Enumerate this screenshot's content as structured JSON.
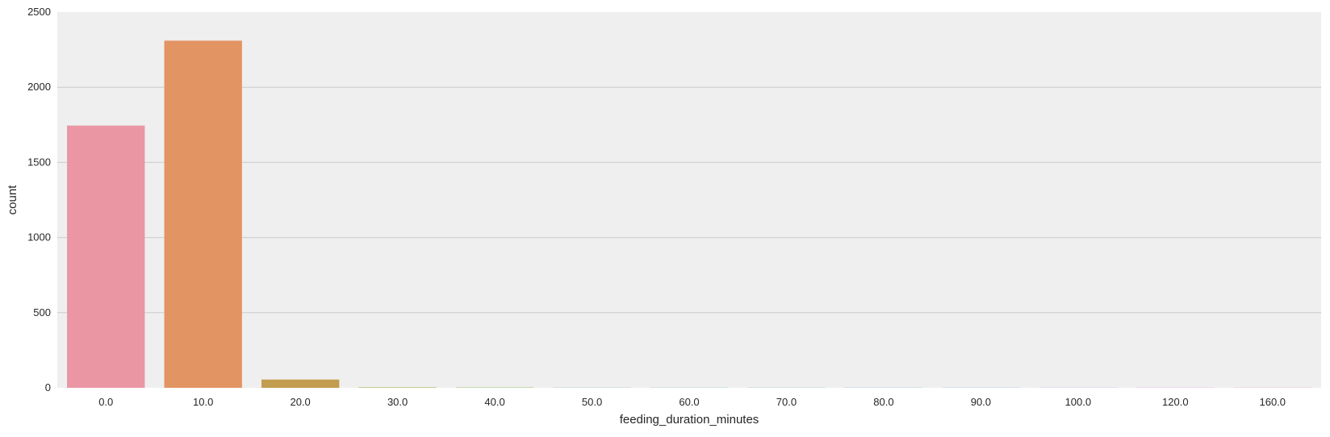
{
  "chart_data": {
    "type": "bar",
    "title": "",
    "xlabel": "feeding_duration_minutes",
    "ylabel": "count",
    "categories": [
      "0.0",
      "10.0",
      "20.0",
      "30.0",
      "40.0",
      "50.0",
      "60.0",
      "70.0",
      "80.0",
      "90.0",
      "100.0",
      "120.0",
      "160.0"
    ],
    "values": [
      1745,
      2310,
      55,
      3,
      2,
      1,
      1,
      1,
      1,
      1,
      1,
      1,
      1
    ],
    "ylim": [
      0,
      2500
    ],
    "yticks": [
      "0",
      "500",
      "1000",
      "1500",
      "2000",
      "2500"
    ],
    "grid": "horizontal",
    "background_color": "#EFEFEF",
    "grid_color": "#CCCCCC",
    "bar_colors": [
      "#EA96A3",
      "#E39463",
      "#C39D4F",
      "#A5A84E",
      "#7BB14F",
      "#4FB66B",
      "#4FB597",
      "#51B2AF",
      "#55ADC4",
      "#6EA2DC",
      "#AB93E6",
      "#D687E2",
      "#E78BC1"
    ]
  }
}
